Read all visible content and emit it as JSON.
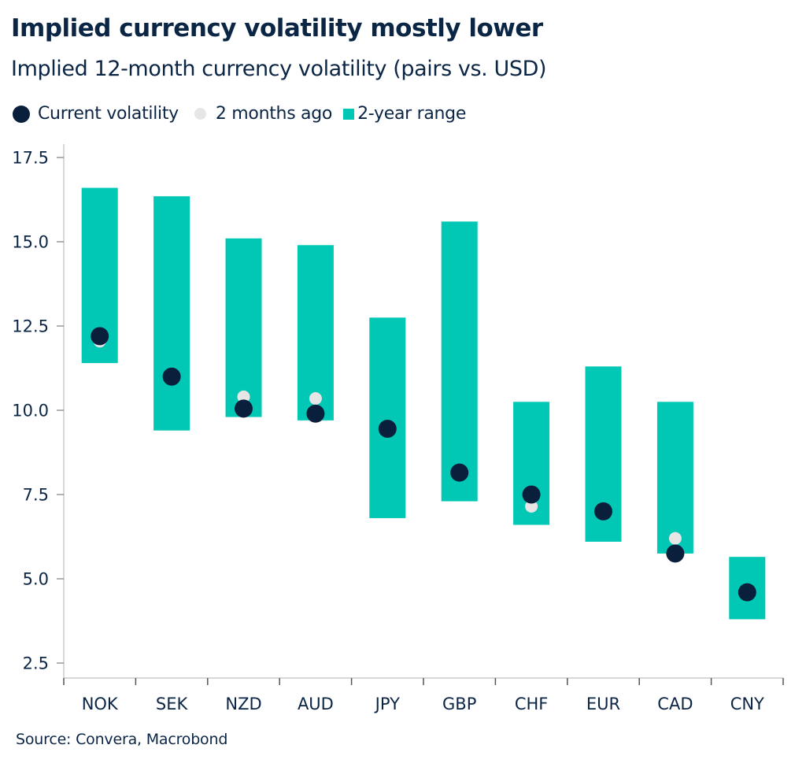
{
  "header": {
    "title": "Implied currency volatility mostly lower",
    "subtitle": "Implied 12-month currency volatility (pairs vs. USD)"
  },
  "legend": {
    "items": [
      {
        "label": "Current volatility",
        "icon": "dark-circle-icon"
      },
      {
        "label": "2 months ago",
        "icon": "light-circle-icon"
      },
      {
        "label": "2-year range",
        "icon": "teal-square-icon"
      }
    ]
  },
  "source": "Source: Convera, Macrobond",
  "colors": {
    "current": "#0a1f3c",
    "two_months_ago": "#e6e6e6",
    "range": "#00c8b4",
    "text": "#0b2545",
    "axis": "#cccccc"
  },
  "chart_data": {
    "type": "range-dot",
    "title": "Implied currency volatility mostly lower",
    "subtitle": "Implied 12-month currency volatility (pairs vs. USD)",
    "xlabel": "",
    "ylabel": "",
    "ylim": [
      2.05,
      17.9
    ],
    "yticks": [
      2.5,
      5.0,
      7.5,
      10.0,
      12.5,
      15.0,
      17.5
    ],
    "ytick_labels": [
      "2.5",
      "5.0",
      "7.5",
      "10.0",
      "12.5",
      "15.0",
      "17.5"
    ],
    "grid": false,
    "legend_position": "top-left",
    "categories": [
      "NOK",
      "SEK",
      "NZD",
      "AUD",
      "JPY",
      "GBP",
      "CHF",
      "EUR",
      "CAD",
      "CNY"
    ],
    "series": [
      {
        "name": "2-year range",
        "kind": "range",
        "low": [
          11.4,
          9.4,
          9.8,
          9.7,
          6.8,
          7.3,
          6.6,
          6.1,
          5.75,
          3.8
        ],
        "high": [
          16.6,
          16.35,
          15.1,
          14.9,
          12.75,
          15.6,
          10.25,
          11.3,
          10.25,
          5.65
        ]
      },
      {
        "name": "2 months ago",
        "kind": "dot",
        "values": [
          12.05,
          10.93,
          10.4,
          10.35,
          9.53,
          8.2,
          7.15,
          6.92,
          6.2,
          4.6
        ]
      },
      {
        "name": "Current volatility",
        "kind": "dot",
        "values": [
          12.2,
          11.0,
          10.05,
          9.9,
          9.45,
          8.15,
          7.5,
          7.0,
          5.75,
          4.6
        ]
      }
    ]
  }
}
